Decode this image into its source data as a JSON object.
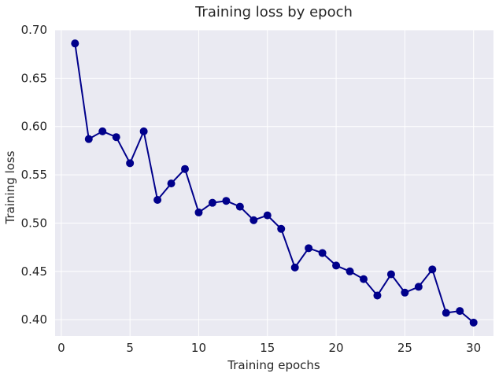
{
  "chart_data": {
    "type": "line",
    "title": "Training loss by epoch",
    "xlabel": "Training epochs",
    "ylabel": "Training loss",
    "xlim": [
      -0.45,
      31.45
    ],
    "ylim": [
      0.383,
      0.7
    ],
    "xticks": [
      0,
      5,
      10,
      15,
      20,
      25,
      30
    ],
    "yticks": [
      0.4,
      0.45,
      0.5,
      0.55,
      0.6,
      0.65,
      0.7
    ],
    "xtick_labels": [
      "0",
      "5",
      "10",
      "15",
      "20",
      "25",
      "30"
    ],
    "ytick_labels": [
      "0.40",
      "0.45",
      "0.50",
      "0.55",
      "0.60",
      "0.65",
      "0.70"
    ],
    "grid": true,
    "background": "#eaeaf2",
    "grid_color": "#ffffff",
    "series": [
      {
        "color": "#00008b",
        "marker": "circle",
        "x": [
          1,
          2,
          3,
          4,
          5,
          6,
          7,
          8,
          9,
          10,
          11,
          12,
          13,
          14,
          15,
          16,
          17,
          18,
          19,
          20,
          21,
          22,
          23,
          24,
          25,
          26,
          27,
          28,
          29,
          30
        ],
        "values": [
          0.686,
          0.587,
          0.595,
          0.589,
          0.562,
          0.595,
          0.524,
          0.541,
          0.556,
          0.511,
          0.521,
          0.523,
          0.517,
          0.503,
          0.508,
          0.494,
          0.454,
          0.474,
          0.469,
          0.456,
          0.45,
          0.442,
          0.425,
          0.447,
          0.428,
          0.434,
          0.452,
          0.407,
          0.409,
          0.397
        ]
      }
    ]
  }
}
